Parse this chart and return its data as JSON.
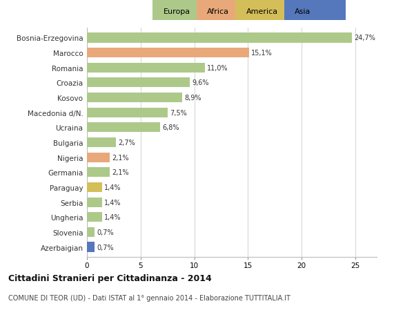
{
  "countries": [
    "Bosnia-Erzegovina",
    "Marocco",
    "Romania",
    "Croazia",
    "Kosovo",
    "Macedonia d/N.",
    "Ucraina",
    "Bulgaria",
    "Nigeria",
    "Germania",
    "Paraguay",
    "Serbia",
    "Ungheria",
    "Slovenia",
    "Azerbaigian"
  ],
  "values": [
    24.7,
    15.1,
    11.0,
    9.6,
    8.9,
    7.5,
    6.8,
    2.7,
    2.1,
    2.1,
    1.4,
    1.4,
    1.4,
    0.7,
    0.7
  ],
  "labels": [
    "24,7%",
    "15,1%",
    "11,0%",
    "9,6%",
    "8,9%",
    "7,5%",
    "6,8%",
    "2,7%",
    "2,1%",
    "2,1%",
    "1,4%",
    "1,4%",
    "1,4%",
    "0,7%",
    "0,7%"
  ],
  "colors": [
    "#adc98a",
    "#e8a87a",
    "#adc98a",
    "#adc98a",
    "#adc98a",
    "#adc98a",
    "#adc98a",
    "#adc98a",
    "#e8a87a",
    "#adc98a",
    "#d4be5a",
    "#adc98a",
    "#adc98a",
    "#adc98a",
    "#5577bb"
  ],
  "legend_labels": [
    "Europa",
    "Africa",
    "America",
    "Asia"
  ],
  "legend_colors": [
    "#adc98a",
    "#e8a87a",
    "#d4be5a",
    "#5577bb"
  ],
  "xlim": [
    0,
    27
  ],
  "xticks": [
    0,
    5,
    10,
    15,
    20,
    25
  ],
  "title": "Cittadini Stranieri per Cittadinanza - 2014",
  "subtitle": "COMUNE DI TEOR (UD) - Dati ISTAT al 1° gennaio 2014 - Elaborazione TUTTITALIA.IT",
  "background_color": "#ffffff",
  "grid_color": "#d8d8d8",
  "bar_height": 0.65
}
